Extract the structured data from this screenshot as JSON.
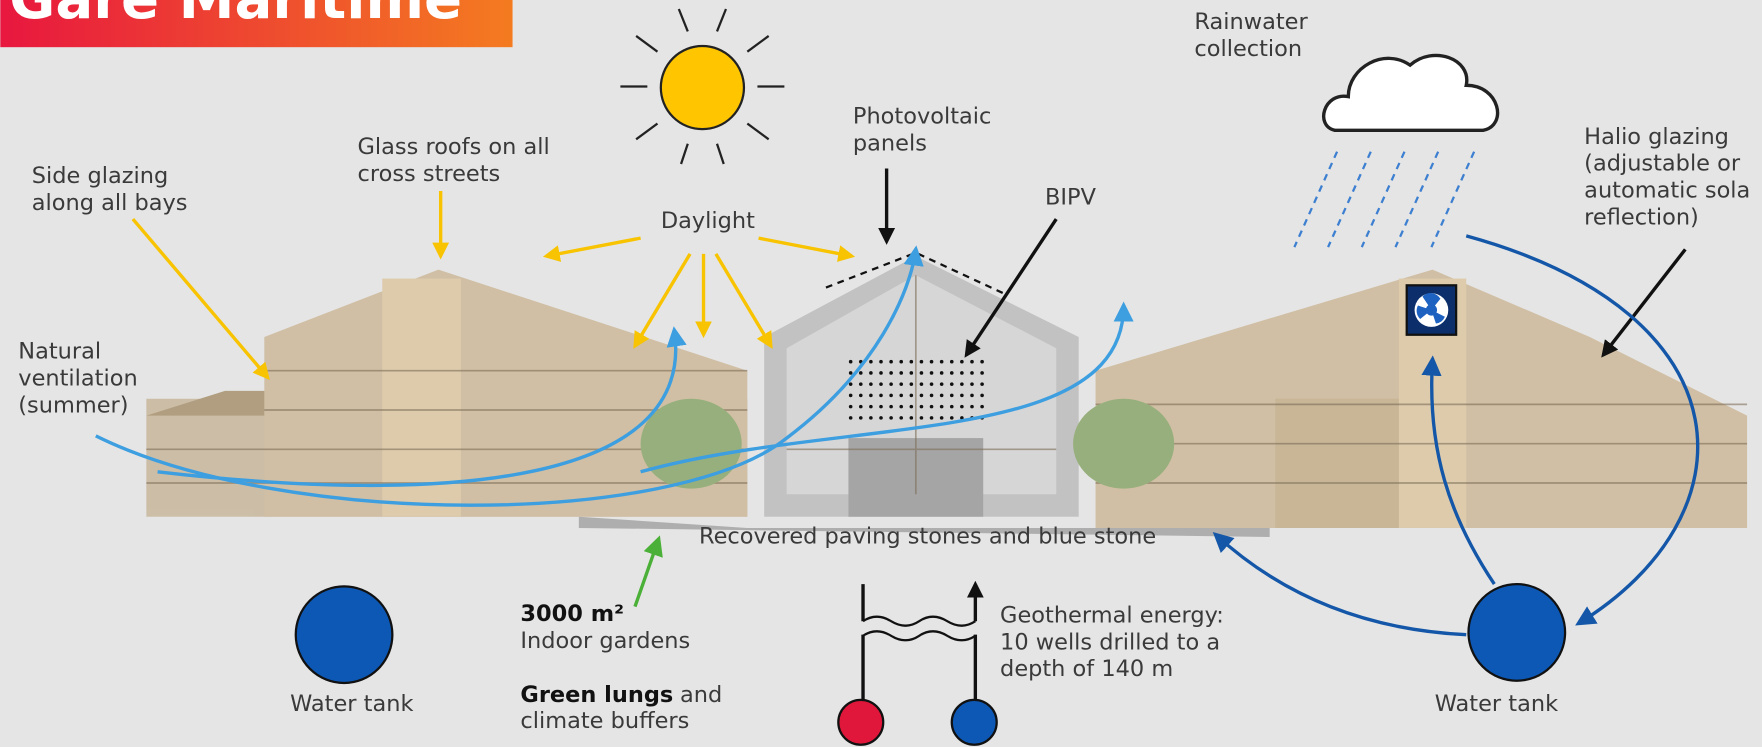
{
  "header": {
    "title": "Gare Maritime"
  },
  "labels": {
    "rainwater": [
      "Rainwater",
      "collection"
    ],
    "photovoltaic": [
      "Photovoltaic",
      "panels"
    ],
    "halio": [
      "Halio glazing",
      "(adjustable or",
      "automatic sola",
      "reflection)"
    ],
    "glass_roofs": [
      "Glass roofs on all",
      "cross streets"
    ],
    "side_glazing": [
      "Side glazing",
      "along all bays"
    ],
    "bipv": "BIPV",
    "daylight": "Daylight",
    "ventilation": [
      "Natural",
      "ventilation",
      "(summer)"
    ],
    "paving": "Recovered paving stones and blue stone",
    "gardens": {
      "bold": "3000 m²",
      "text": "Indoor gardens"
    },
    "lungs": {
      "bold": "Green lungs",
      "rest": "and",
      "text": "climate buffers"
    },
    "geothermal": [
      "Geothermal energy:",
      "10 wells drilled to a",
      "depth of 140 m"
    ],
    "water_tank_left": "Water tank",
    "water_tank_right": "Water tank"
  }
}
